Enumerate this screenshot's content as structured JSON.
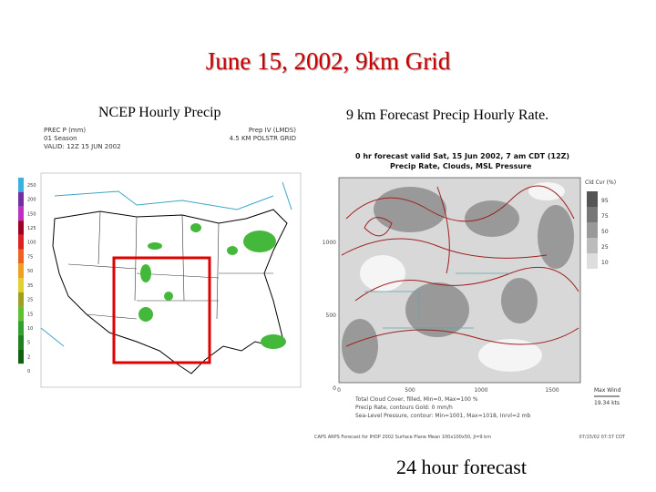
{
  "title": "June 15, 2002, 9km Grid",
  "left_panel": {
    "caption": "NCEP Hourly Precip",
    "header_left": [
      "PREC P (mm)",
      "01 Season",
      "VALID: 12Z 15 JUN 2002"
    ],
    "header_right": [
      "Prep IV (LMDS)",
      "4.5 KM POLSTR GRID"
    ],
    "legend_labels": [
      "250",
      "200",
      "150",
      "125",
      "100",
      "75",
      "50",
      "35",
      "25",
      "15",
      "10",
      "5",
      "2",
      "0"
    ]
  },
  "right_panel": {
    "caption": "9 km Forecast Precip Hourly Rate.",
    "header": [
      "0 hr forecast valid Sat, 15 Jun 2002, 7 am CDT (12Z)",
      "Precip Rate, Clouds, MSL Pressure"
    ],
    "legend_title": "Cld Cvr (%)",
    "legend_labels": [
      "95",
      "75",
      "50",
      "25",
      "10"
    ],
    "y_axis": [
      "1000",
      "500",
      "0"
    ],
    "x_axis": [
      "0",
      "500",
      "1000",
      "1500"
    ],
    "wind_label": "Max Wind",
    "wind_value": "19.34 kts",
    "footer": [
      "Total Cloud Cover, filled, Min=0, Max=100 %",
      "Precip Rate, contours Gold: 0 mm/h",
      "Sea-Level Pressure, contour: Min=1001, Max=1018, Inrvl=2 mb"
    ],
    "credit": "CAPS ARPS Forecast for IHOP 2002   Surface Plane Mean 100x100x50, Ji=9 km",
    "timestamp": "07/15/02 07:37 CDT"
  },
  "bottom_caption": "24 hour forecast"
}
